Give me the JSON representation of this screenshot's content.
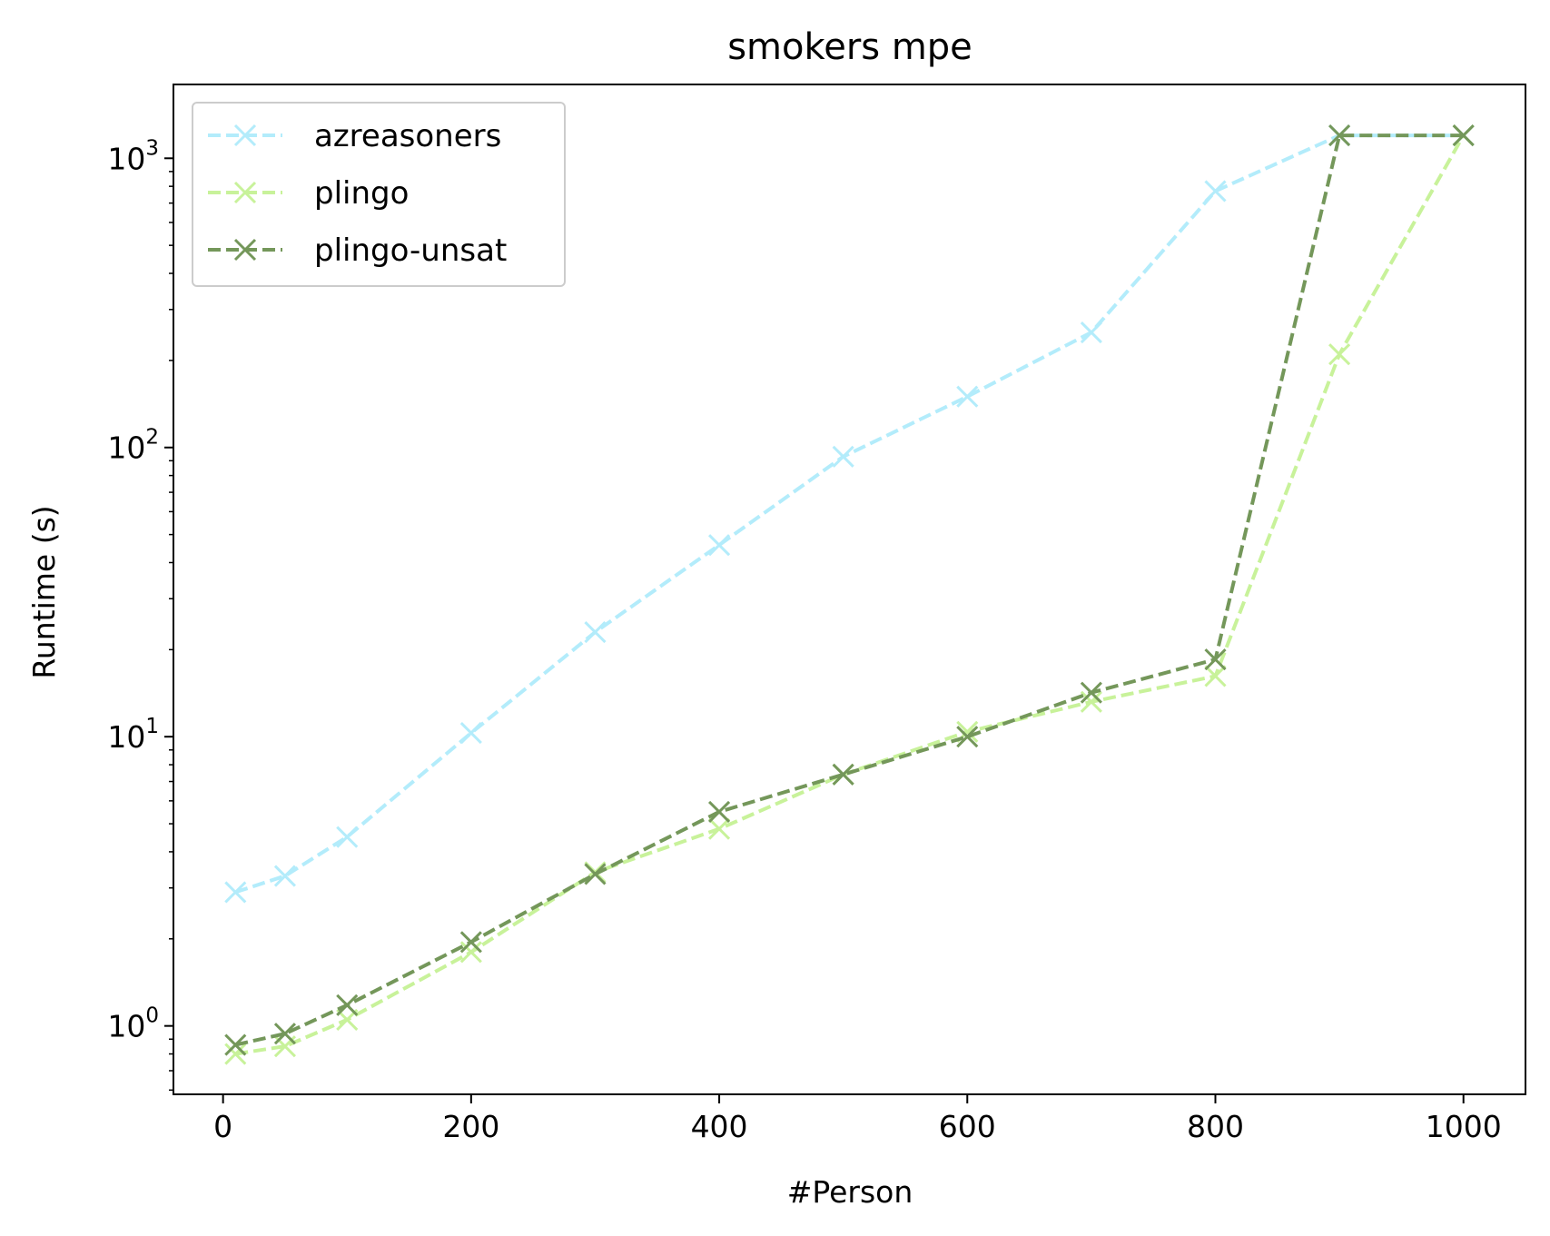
{
  "chart_data": {
    "type": "line",
    "title": "smokers mpe",
    "xlabel": "#Person",
    "ylabel": "Runtime (s)",
    "x_ticks": [
      0,
      200,
      400,
      600,
      800,
      1000
    ],
    "x_tick_labels": [
      "0",
      "200",
      "400",
      "600",
      "800",
      "1000"
    ],
    "xlim": [
      -40,
      1050
    ],
    "y_scale": "log",
    "ylim": [
      0.58,
      1800
    ],
    "y_ticks": [
      1,
      10,
      100,
      1000
    ],
    "y_tick_labels": [
      {
        "base": "10",
        "exp": "0"
      },
      {
        "base": "10",
        "exp": "1"
      },
      {
        "base": "10",
        "exp": "2"
      },
      {
        "base": "10",
        "exp": "3"
      }
    ],
    "grid": false,
    "legend_position": "upper left",
    "line_style": "dashed",
    "marker": "x",
    "series": [
      {
        "name": "azreasoners",
        "color": "#b3ecfb",
        "x": [
          10,
          50,
          100,
          200,
          300,
          400,
          500,
          600,
          700,
          800,
          900,
          1000
        ],
        "values": [
          2.9,
          3.3,
          4.5,
          10.3,
          23,
          46,
          93,
          150,
          250,
          770,
          1200,
          1200
        ]
      },
      {
        "name": "plingo",
        "color": "#c8f29a",
        "x": [
          10,
          50,
          100,
          200,
          300,
          400,
          500,
          600,
          700,
          800,
          900,
          1000
        ],
        "values": [
          0.8,
          0.85,
          1.05,
          1.8,
          3.4,
          4.8,
          7.4,
          10.4,
          13.2,
          16.2,
          210,
          1200
        ]
      },
      {
        "name": "plingo-unsat",
        "color": "#74975a",
        "x": [
          10,
          50,
          100,
          200,
          300,
          400,
          500,
          600,
          700,
          800,
          900,
          1000
        ],
        "values": [
          0.86,
          0.94,
          1.18,
          1.95,
          3.35,
          5.5,
          7.4,
          10.0,
          14.2,
          18.5,
          1200,
          1200
        ]
      }
    ]
  }
}
